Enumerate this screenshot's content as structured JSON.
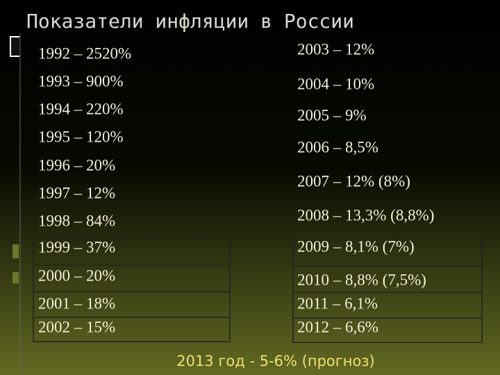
{
  "header": {
    "title": "Показатели инфляции в России"
  },
  "left_column": [
    "1992 – 2520%",
    "1993 – 900%",
    "1994 – 220%",
    "1995 – 120%",
    "1996 – 20%",
    "1997 – 12%",
    "1998 – 84%",
    "1999 – 37%",
    "2000 – 20%",
    "2001 – 18%",
    "2002 – 15%"
  ],
  "right_column": [
    "2003 – 12%",
    "2004 – 10%",
    "2005 – 9%",
    "2006 – 8,5%",
    "2007 – 12% (8%)",
    "2008 – 13,3% (8,8%)",
    "2009 – 8,1% (7%)",
    "2010 – 8,8% (7,5%)",
    "2011 – 6,1%",
    "2012 – 6,6%"
  ],
  "footer": "2013 год  - 5-6% (прогноз)"
}
